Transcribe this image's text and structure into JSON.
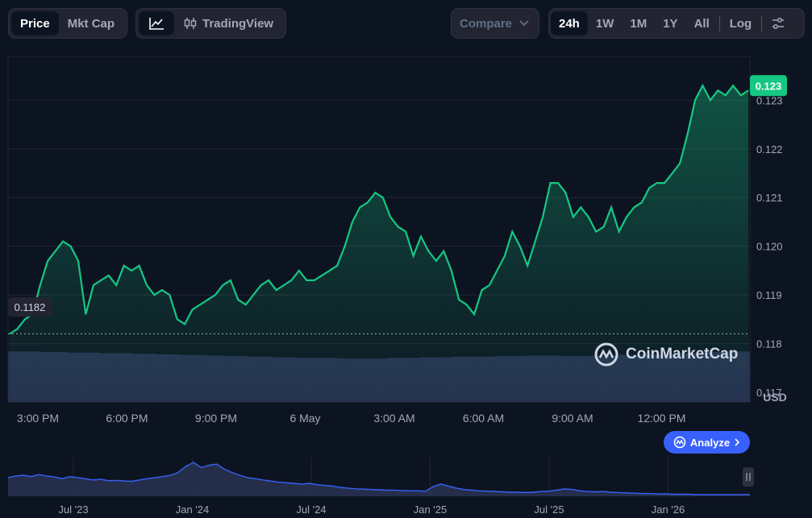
{
  "toolbar": {
    "metric_tabs": [
      {
        "label": "Price",
        "active": true
      },
      {
        "label": "Mkt Cap",
        "active": false
      }
    ],
    "chart_mode": {
      "tradingview_label": "TradingView"
    },
    "compare_label": "Compare",
    "range_tabs": [
      {
        "label": "24h",
        "active": true
      },
      {
        "label": "1W",
        "active": false
      },
      {
        "label": "1M",
        "active": false
      },
      {
        "label": "1Y",
        "active": false
      },
      {
        "label": "All",
        "active": false
      }
    ],
    "log_label": "Log"
  },
  "watermark": "CoinMarketCap",
  "analyze_label": "Analyze",
  "colors": {
    "background": "#0d1421",
    "line": "#16c784",
    "volume": "#2b3556",
    "overview_line": "#3861fb",
    "analyze_button": "#3861fb"
  },
  "icons": [
    "line-chart-icon",
    "candlestick-icon",
    "chevron-down-icon",
    "settings-sliders-icon",
    "coinmarketcap-logo-icon",
    "chevron-right-icon",
    "pause-handle-icon"
  ],
  "chart_data": {
    "type": "line",
    "currency_label": "USD",
    "ylim": [
      0.1168,
      0.1239
    ],
    "y_ticks": [
      {
        "value": 0.117,
        "label": "0.117"
      },
      {
        "value": 0.118,
        "label": "0.118"
      },
      {
        "value": 0.119,
        "label": "0.119"
      },
      {
        "value": 0.12,
        "label": "0.120"
      },
      {
        "value": 0.121,
        "label": "0.121"
      },
      {
        "value": 0.122,
        "label": "0.122"
      },
      {
        "value": 0.123,
        "label": "0.123"
      }
    ],
    "x_ticks": [
      "3:00 PM",
      "6:00 PM",
      "9:00 PM",
      "6 May",
      "3:00 AM",
      "6:00 AM",
      "9:00 AM",
      "12:00 PM"
    ],
    "x_range_hours": [
      0,
      24.3
    ],
    "open_price": {
      "value": 0.1182,
      "label": "0.1182"
    },
    "current_price": {
      "value": 0.1233,
      "label": "0.123"
    },
    "series": [
      {
        "x": [
          0,
          0.25,
          0.5,
          0.75,
          1,
          1.25,
          1.5,
          1.75,
          2,
          2.25,
          2.5,
          2.75,
          3,
          3.25,
          3.5,
          3.75,
          4,
          4.25,
          4.5,
          4.75,
          5,
          5.25,
          5.5,
          5.75,
          6,
          6.25,
          6.5,
          6.75,
          7,
          7.25,
          7.5,
          7.75,
          8,
          8.25,
          8.5,
          8.75,
          9,
          9.25,
          9.5,
          9.75,
          10,
          10.25,
          10.5,
          10.75,
          11,
          11.25,
          11.5,
          11.75,
          12,
          12.25,
          12.5,
          12.75,
          13,
          13.25,
          13.5,
          13.75,
          14,
          14.25,
          14.5,
          14.75,
          15,
          15.25,
          15.5,
          15.75,
          16,
          16.25,
          16.5,
          16.75,
          17,
          17.25,
          17.5,
          17.75,
          18,
          18.25,
          18.5,
          18.75,
          19,
          19.25,
          19.5,
          19.75,
          20,
          20.25,
          20.5,
          20.75,
          21,
          21.25,
          21.5,
          21.75,
          22,
          22.25,
          22.5,
          22.75,
          23,
          23.25,
          23.5,
          23.75,
          24,
          24.25
        ],
        "y": [
          0.1182,
          0.1183,
          0.1185,
          0.1186,
          0.1192,
          0.1197,
          0.1199,
          0.1201,
          0.12,
          0.1197,
          0.1186,
          0.1192,
          0.1193,
          0.1194,
          0.1192,
          0.1196,
          0.1195,
          0.1196,
          0.1192,
          0.119,
          0.1191,
          0.119,
          0.1185,
          0.1184,
          0.1187,
          0.1188,
          0.1189,
          0.119,
          0.1192,
          0.1193,
          0.1189,
          0.1188,
          0.119,
          0.1192,
          0.1193,
          0.1191,
          0.1192,
          0.1193,
          0.1195,
          0.1193,
          0.1193,
          0.1194,
          0.1195,
          0.1196,
          0.12,
          0.1205,
          0.1208,
          0.1209,
          0.1211,
          0.121,
          0.1206,
          0.1204,
          0.1203,
          0.1198,
          0.1202,
          0.1199,
          0.1197,
          0.1199,
          0.1195,
          0.1189,
          0.1188,
          0.1186,
          0.1191,
          0.1192,
          0.1195,
          0.1198,
          0.1203,
          0.12,
          0.1196,
          0.1201,
          0.1206,
          0.1213,
          0.1213,
          0.1211,
          0.1206,
          0.1208,
          0.1206,
          0.1203,
          0.1204,
          0.1208,
          0.1203,
          0.1206,
          0.1208,
          0.1209,
          0.1212,
          0.1213,
          0.1213,
          0.1215,
          0.1217,
          0.1223,
          0.123,
          0.1233,
          0.123,
          0.1232,
          0.1231,
          0.1233,
          0.1231,
          0.1232
        ]
      }
    ],
    "volume": [
      0.86,
      0.86,
      0.86,
      0.86,
      0.85,
      0.85,
      0.85,
      0.84,
      0.84,
      0.84,
      0.84,
      0.83,
      0.83,
      0.83,
      0.83,
      0.82,
      0.82,
      0.82,
      0.81,
      0.81,
      0.81,
      0.8,
      0.8,
      0.8,
      0.79,
      0.79,
      0.78,
      0.78,
      0.78,
      0.77,
      0.77,
      0.77,
      0.76,
      0.76,
      0.76,
      0.75,
      0.75,
      0.75,
      0.75,
      0.75,
      0.74,
      0.74,
      0.74,
      0.74,
      0.74,
      0.74,
      0.75,
      0.75,
      0.75,
      0.75,
      0.76,
      0.76,
      0.76,
      0.76,
      0.77,
      0.77,
      0.77,
      0.77,
      0.77,
      0.78,
      0.78,
      0.78,
      0.78,
      0.79,
      0.79,
      0.79,
      0.79,
      0.78,
      0.78,
      0.78,
      0.78,
      0.79,
      0.79,
      0.79,
      0.8,
      0.8,
      0.8,
      0.81,
      0.81,
      0.81,
      0.82,
      0.82,
      0.83,
      0.83,
      0.84,
      0.85,
      0.85,
      0.86,
      0.86,
      0.86
    ],
    "overview": {
      "x_ticks": [
        "Jul '23",
        "Jan '24",
        "Jul '24",
        "Jan '25",
        "Jul '25",
        "Jan '26"
      ],
      "values": [
        0.55,
        0.6,
        0.62,
        0.58,
        0.64,
        0.6,
        0.57,
        0.52,
        0.58,
        0.55,
        0.52,
        0.48,
        0.5,
        0.46,
        0.47,
        0.45,
        0.44,
        0.48,
        0.52,
        0.55,
        0.58,
        0.62,
        0.7,
        0.88,
        1.0,
        0.85,
        0.92,
        0.95,
        0.8,
        0.7,
        0.62,
        0.55,
        0.52,
        0.48,
        0.45,
        0.42,
        0.4,
        0.38,
        0.36,
        0.38,
        0.34,
        0.32,
        0.3,
        0.26,
        0.24,
        0.22,
        0.21,
        0.2,
        0.19,
        0.18,
        0.18,
        0.17,
        0.16,
        0.16,
        0.15,
        0.28,
        0.36,
        0.3,
        0.24,
        0.2,
        0.18,
        0.16,
        0.15,
        0.14,
        0.13,
        0.12,
        0.12,
        0.11,
        0.12,
        0.14,
        0.15,
        0.18,
        0.22,
        0.2,
        0.16,
        0.14,
        0.13,
        0.14,
        0.12,
        0.11,
        0.1,
        0.09,
        0.08,
        0.08,
        0.07,
        0.07,
        0.06,
        0.06,
        0.06,
        0.05,
        0.05,
        0.05,
        0.05,
        0.05,
        0.05,
        0.05,
        0.05
      ]
    }
  }
}
